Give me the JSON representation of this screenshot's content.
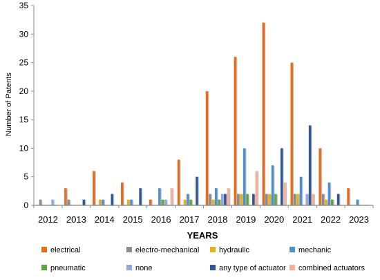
{
  "chart_data": {
    "type": "bar",
    "title": "",
    "xlabel": "YEARS",
    "ylabel": "Number of Patents",
    "ylim": [
      0,
      35
    ],
    "yticks": [
      0,
      5,
      10,
      15,
      20,
      25,
      30,
      35
    ],
    "grid": false,
    "legend_position": "bottom",
    "categories": [
      "2012",
      "2013",
      "2014",
      "2015",
      "2016",
      "2017",
      "2018",
      "2019",
      "2020",
      "2021",
      "2022",
      "2023"
    ],
    "series": [
      {
        "name": "electrical",
        "color": "#E46C1B",
        "values": [
          0,
          3,
          6,
          4,
          1,
          8,
          20,
          26,
          32,
          25,
          10,
          3
        ]
      },
      {
        "name": "electro-mechanical",
        "color": "#8C8C8C",
        "values": [
          1,
          1,
          0,
          0,
          0,
          0,
          2,
          2,
          2,
          2,
          2,
          0
        ]
      },
      {
        "name": "hydraulic",
        "color": "#E6B21A",
        "values": [
          0,
          0,
          1,
          1,
          0,
          1,
          1,
          2,
          2,
          2,
          1,
          0
        ]
      },
      {
        "name": "mechanic",
        "color": "#4F8FCC",
        "values": [
          0,
          0,
          1,
          1,
          3,
          2,
          3,
          10,
          7,
          5,
          4,
          1
        ]
      },
      {
        "name": "pneumatic",
        "color": "#5AA63C",
        "values": [
          0,
          0,
          0,
          0,
          1,
          1,
          1,
          2,
          2,
          0,
          1,
          0
        ]
      },
      {
        "name": "none",
        "color": "#8EA9DB",
        "values": [
          1,
          0,
          0,
          0,
          1,
          0,
          2,
          0,
          0,
          2,
          0,
          0
        ]
      },
      {
        "name": "any type of actuator",
        "color": "#2F5597",
        "values": [
          0,
          1,
          2,
          3,
          0,
          5,
          2,
          2,
          10,
          14,
          2,
          0
        ]
      },
      {
        "name": "combined actuators",
        "color": "#F4B09A",
        "values": [
          0,
          0,
          0,
          0,
          3,
          0,
          3,
          6,
          4,
          2,
          0,
          0
        ]
      }
    ]
  }
}
